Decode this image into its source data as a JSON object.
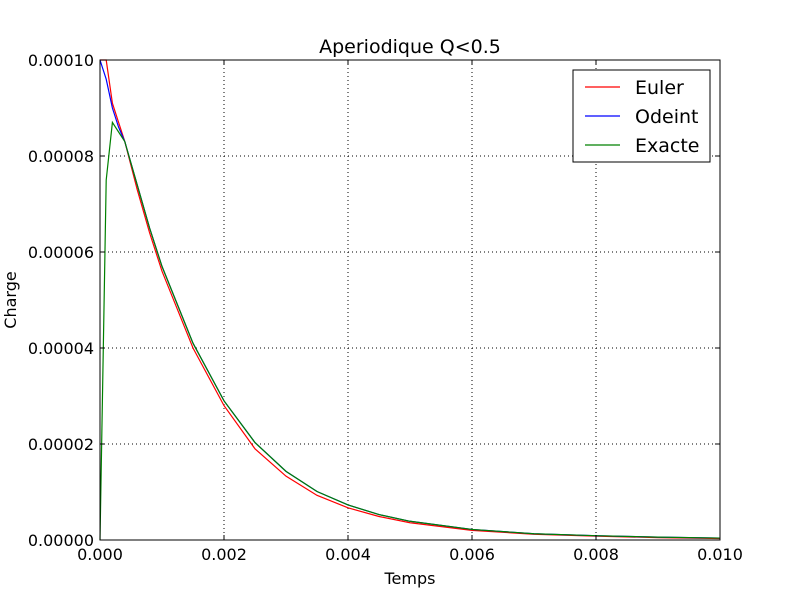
{
  "chart_data": {
    "type": "line",
    "title": "Aperiodique Q<0.5",
    "xlabel": "Temps",
    "ylabel": "Charge",
    "xlim": [
      0,
      0.01
    ],
    "ylim": [
      0,
      0.0001
    ],
    "x_ticks": [
      "0.000",
      "0.002",
      "0.004",
      "0.006",
      "0.008",
      "0.010"
    ],
    "x_tick_values": [
      0,
      0.002,
      0.004,
      0.006,
      0.008,
      0.01
    ],
    "y_ticks": [
      "0.00000",
      "0.00002",
      "0.00004",
      "0.00006",
      "0.00008",
      "0.00010"
    ],
    "y_tick_values": [
      0,
      2e-05,
      4e-05,
      6e-05,
      8e-05,
      0.0001
    ],
    "grid": true,
    "legend_position": "top-right",
    "series": [
      {
        "name": "Euler",
        "color": "#ff0000",
        "x": [
          0,
          0.0001,
          0.0002,
          0.0003,
          0.0004,
          0.0006,
          0.0008,
          0.001,
          0.0015,
          0.002,
          0.0025,
          0.003,
          0.0035,
          0.004,
          0.0045,
          0.005,
          0.006,
          0.007,
          0.008,
          0.009,
          0.01
        ],
        "y": [
          0.0001,
          0.0001,
          9.1e-05,
          8.7e-05,
          8.3e-05,
          7.3e-05,
          6.4e-05,
          5.6e-05,
          4e-05,
          2.8e-05,
          1.9e-05,
          1.33e-05,
          9.3e-06,
          6.7e-06,
          4.9e-06,
          3.6e-06,
          2e-06,
          1.2e-06,
          8e-07,
          5e-07,
          3e-07
        ]
      },
      {
        "name": "Odeint",
        "color": "#0000ff",
        "x": [
          0,
          0.0001,
          0.0002,
          0.0003,
          0.0004,
          0.0006,
          0.0008,
          0.001,
          0.0015,
          0.002,
          0.0025,
          0.003,
          0.0035,
          0.004,
          0.0045,
          0.005,
          0.006,
          0.007,
          0.008,
          0.009,
          0.01
        ],
        "y": [
          0.0001,
          9.6e-05,
          9e-05,
          8.6e-05,
          8.3e-05,
          7.4e-05,
          6.5e-05,
          5.7e-05,
          4.1e-05,
          2.9e-05,
          2.03e-05,
          1.43e-05,
          1.01e-05,
          7.3e-06,
          5.3e-06,
          3.9e-06,
          2.2e-06,
          1.3e-06,
          9e-07,
          6e-07,
          4e-07
        ]
      },
      {
        "name": "Exacte",
        "color": "#008000",
        "x": [
          0,
          0.0001,
          0.0002,
          0.0003,
          0.0004,
          0.0006,
          0.0008,
          0.001,
          0.0015,
          0.002,
          0.0025,
          0.003,
          0.0035,
          0.004,
          0.0045,
          0.005,
          0.006,
          0.007,
          0.008,
          0.009,
          0.01
        ],
        "y": [
          0,
          7.5e-05,
          8.7e-05,
          8.5e-05,
          8.3e-05,
          7.4e-05,
          6.5e-05,
          5.7e-05,
          4.1e-05,
          2.9e-05,
          2.03e-05,
          1.43e-05,
          1.01e-05,
          7.3e-06,
          5.3e-06,
          3.9e-06,
          2.2e-06,
          1.3e-06,
          9e-07,
          6e-07,
          4e-07
        ]
      }
    ]
  }
}
